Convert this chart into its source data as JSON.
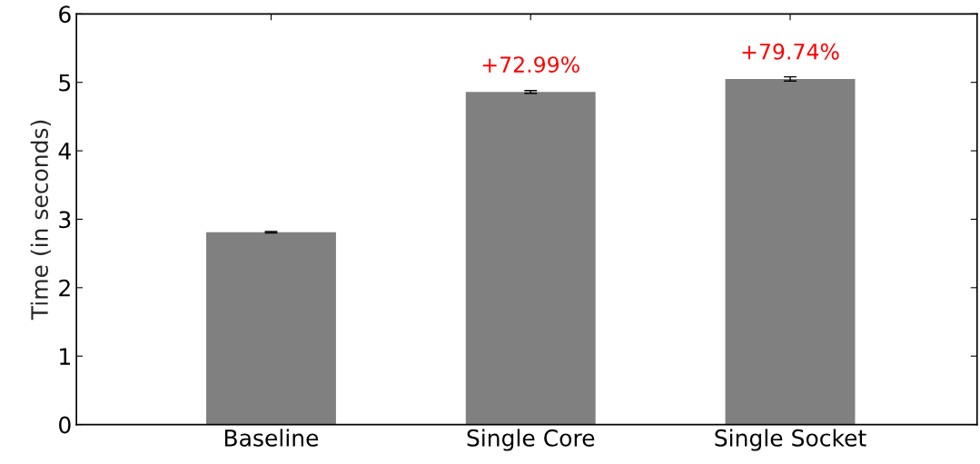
{
  "chart_data": {
    "type": "bar",
    "ylabel": "Time (in seconds)",
    "categories": [
      "Baseline",
      "Single Core",
      "Single Socket"
    ],
    "values": [
      2.81,
      4.86,
      5.05
    ],
    "errors": [
      0.01,
      0.02,
      0.03
    ],
    "annotations": [
      {
        "text": "+72.99%",
        "x": "Single Core",
        "y": 4.86
      },
      {
        "text": "+79.74%",
        "x": "Single Socket",
        "y": 5.05
      }
    ],
    "color": "#808080",
    "ylim": [
      0,
      6
    ],
    "yticks": [
      0,
      1,
      2,
      3,
      4,
      5,
      6
    ],
    "grid": false
  }
}
